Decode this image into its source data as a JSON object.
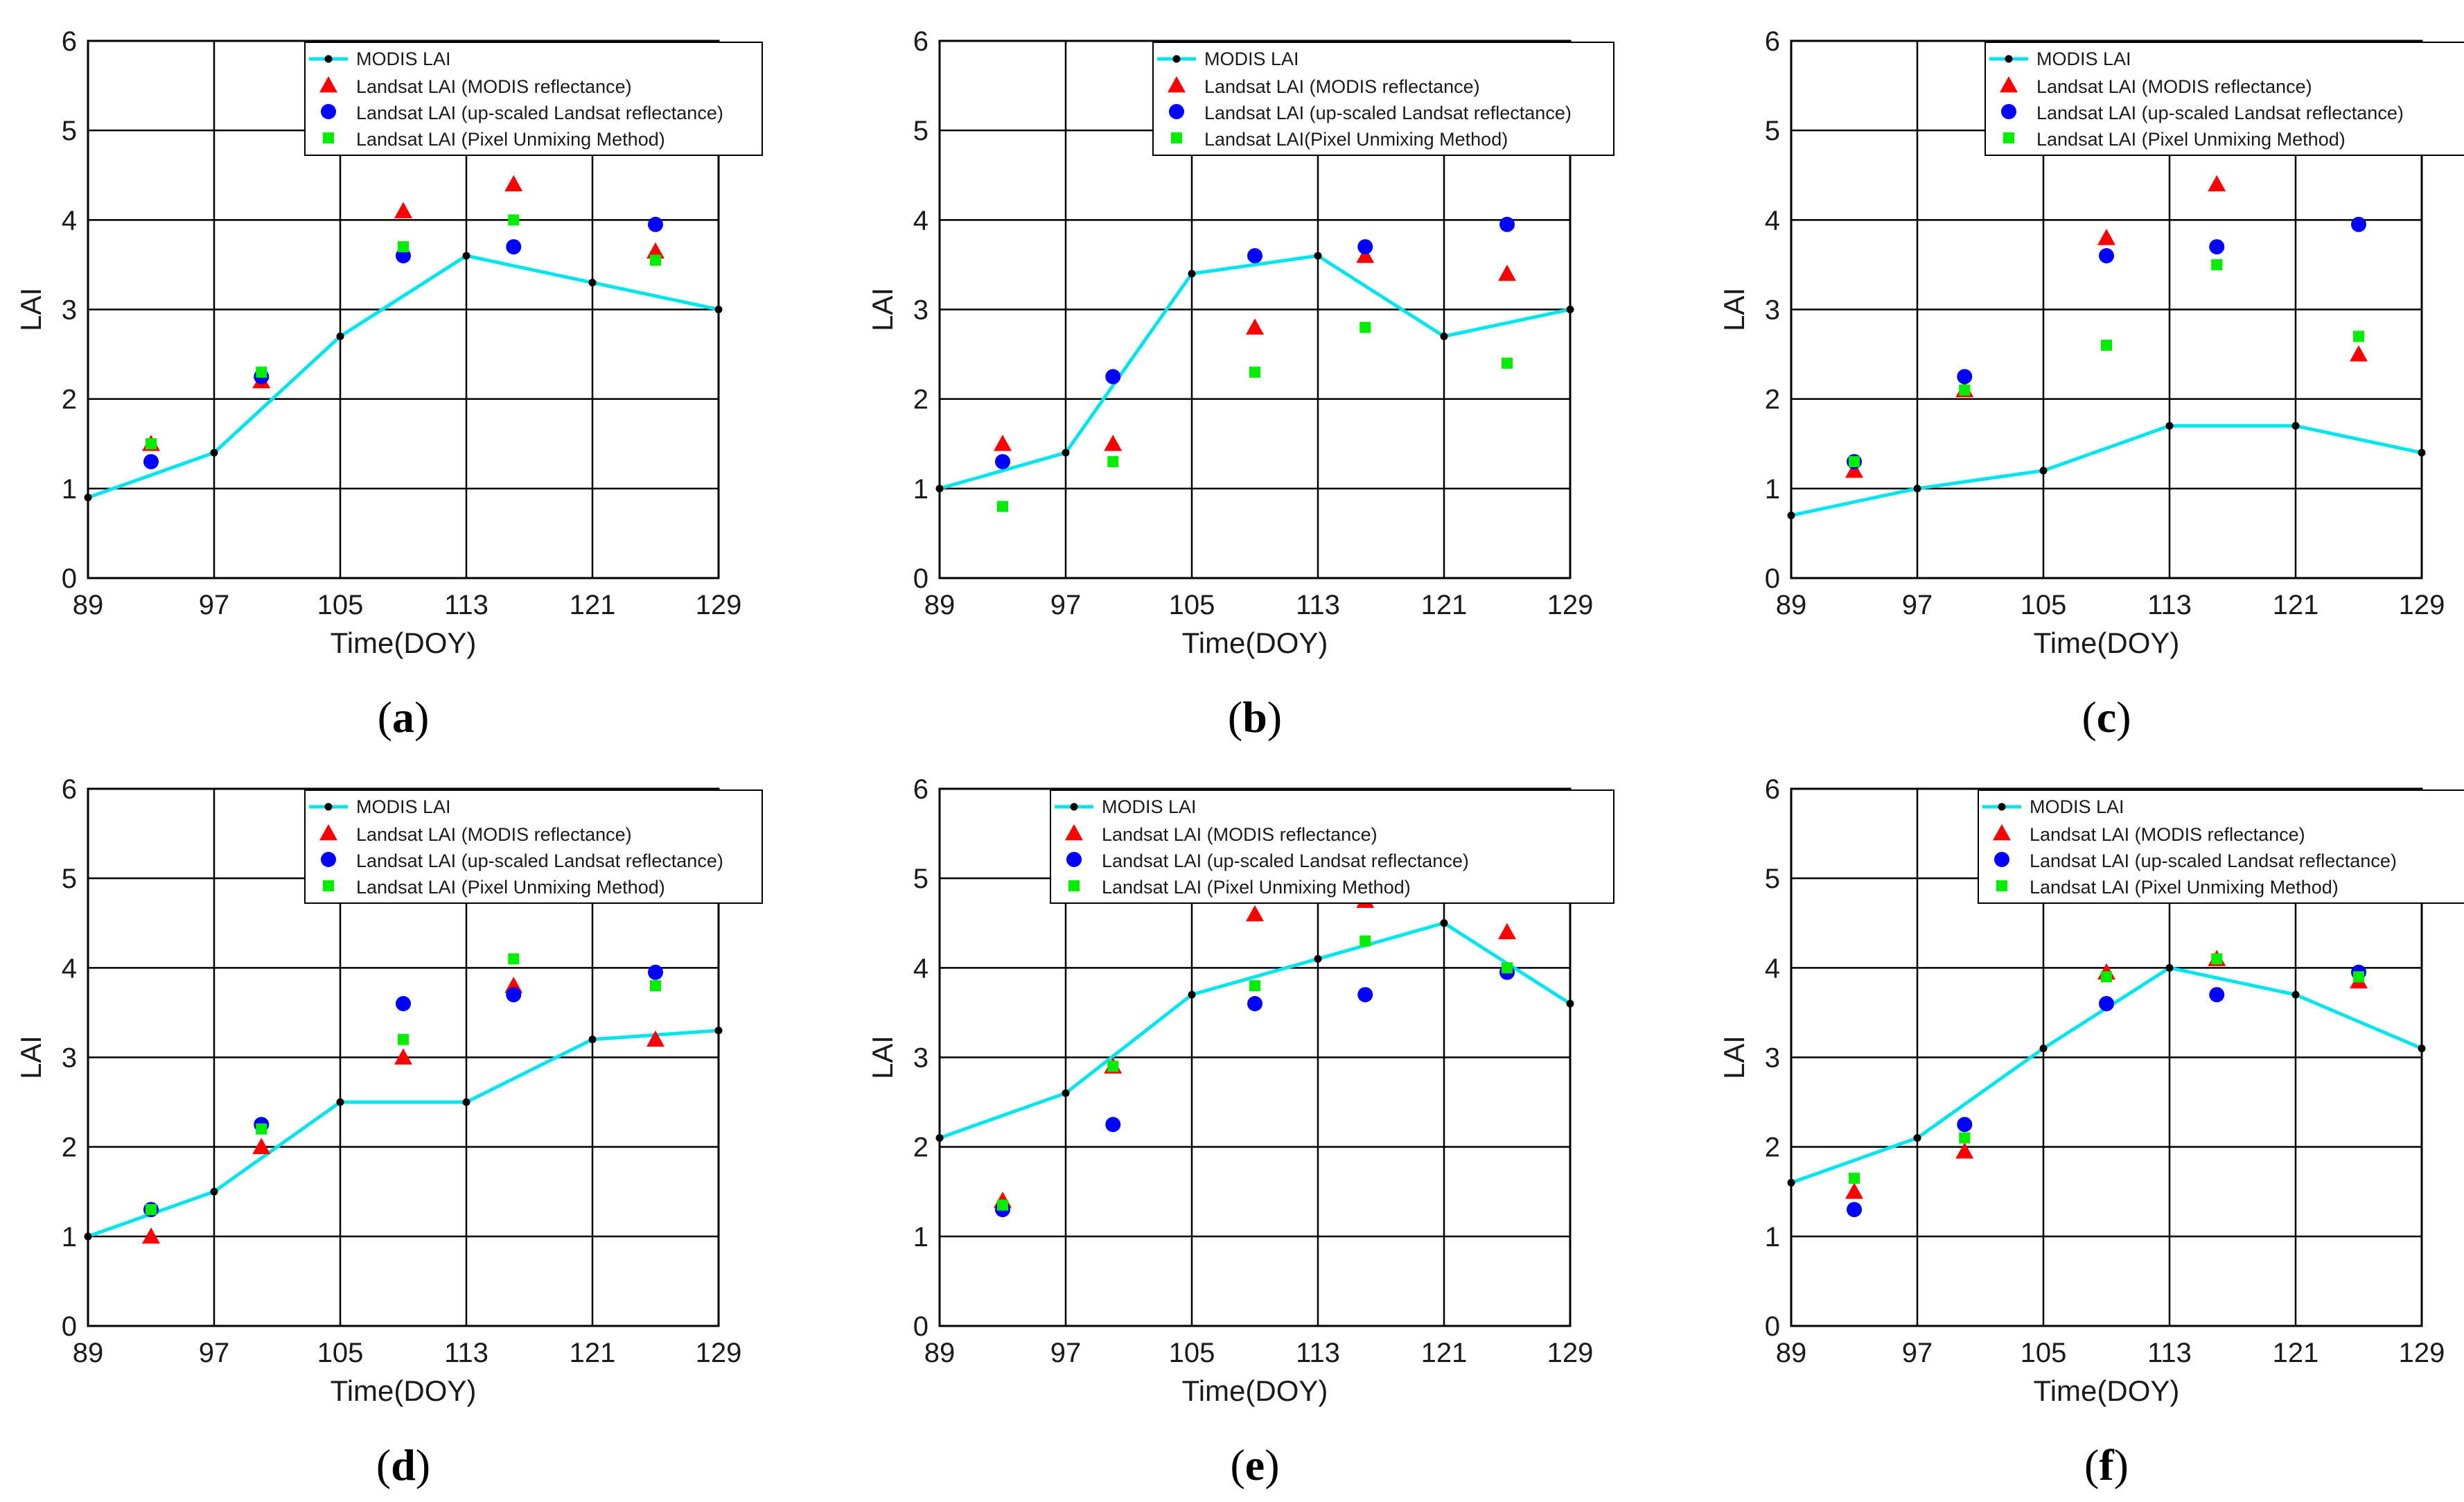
{
  "colors": {
    "modis_line": "#00e5ee",
    "modis_marker": "#000000",
    "landsat_modis_refl": "#ff0000",
    "landsat_upscaled": "#0000ff",
    "landsat_pum": "#00ee00",
    "grid": "#000000"
  },
  "chart_data": [
    {
      "type": "line",
      "panel_label_text": "a",
      "xlabel": "Time(DOY)",
      "ylabel": "LAI",
      "xlim": [
        89,
        129
      ],
      "ylim": [
        0,
        6
      ],
      "xticks": [
        89,
        97,
        105,
        113,
        121,
        129
      ],
      "yticks": [
        0,
        1,
        2,
        3,
        4,
        5,
        6
      ],
      "legend_position": "top-right",
      "modis": {
        "name": "MODIS LAI",
        "x": [
          89,
          97,
          105,
          113,
          121,
          129
        ],
        "y": [
          0.9,
          1.4,
          2.7,
          3.6,
          3.3,
          3.0
        ]
      },
      "scatter_x": [
        93,
        100,
        109,
        116,
        125
      ],
      "series": [
        {
          "name": "Landsat LAI (MODIS reflectance)",
          "marker": "triangle",
          "y": [
            1.5,
            2.2,
            4.1,
            4.4,
            3.65
          ]
        },
        {
          "name": "Landsat LAI (up-scaled Landsat reflectance)",
          "marker": "circle",
          "y": [
            1.3,
            2.25,
            3.6,
            3.7,
            3.95
          ]
        },
        {
          "name": "Landsat LAI (Pixel Unmixing Method)",
          "marker": "square",
          "y": [
            1.5,
            2.3,
            3.7,
            4.0,
            3.55
          ]
        }
      ]
    },
    {
      "type": "line",
      "panel_label_text": "b",
      "xlabel": "Time(DOY)",
      "ylabel": "LAI",
      "xlim": [
        89,
        129
      ],
      "ylim": [
        0,
        6
      ],
      "xticks": [
        89,
        97,
        105,
        113,
        121,
        129
      ],
      "yticks": [
        0,
        1,
        2,
        3,
        4,
        5,
        6
      ],
      "legend_position": "top-right",
      "modis": {
        "name": "MODIS LAI",
        "x": [
          89,
          97,
          105,
          113,
          121,
          129
        ],
        "y": [
          1.0,
          1.4,
          3.4,
          3.6,
          2.7,
          3.0
        ]
      },
      "scatter_x": [
        93,
        100,
        109,
        116,
        125
      ],
      "series": [
        {
          "name": "Landsat LAI (MODIS reflectance)",
          "marker": "triangle",
          "y": [
            1.5,
            1.5,
            2.8,
            3.6,
            3.4
          ]
        },
        {
          "name": "Landsat LAI (up-scaled Landsat reflectance)",
          "marker": "circle",
          "y": [
            1.3,
            2.25,
            3.6,
            3.7,
            3.95
          ]
        },
        {
          "name": "Landsat LAI(Pixel Unmixing Method)",
          "marker": "square",
          "y": [
            0.8,
            1.3,
            2.3,
            2.8,
            2.4
          ]
        }
      ]
    },
    {
      "type": "line",
      "panel_label_text": "c",
      "xlabel": "Time(DOY)",
      "ylabel": "LAI",
      "xlim": [
        89,
        129
      ],
      "ylim": [
        0,
        6
      ],
      "xticks": [
        89,
        97,
        105,
        113,
        121,
        129
      ],
      "yticks": [
        0,
        1,
        2,
        3,
        4,
        5,
        6
      ],
      "legend_position": "top-right",
      "modis": {
        "name": "MODIS LAI",
        "x": [
          89,
          97,
          105,
          113,
          121,
          129
        ],
        "y": [
          0.7,
          1.0,
          1.2,
          1.7,
          1.7,
          1.4
        ]
      },
      "scatter_x": [
        93,
        100,
        109,
        116,
        125
      ],
      "series": [
        {
          "name": "Landsat LAI (MODIS reflectance)",
          "marker": "triangle",
          "y": [
            1.2,
            2.1,
            3.8,
            4.4,
            2.5
          ]
        },
        {
          "name": "Landsat LAI (up-scaled Landsat reflectance)",
          "marker": "circle",
          "y": [
            1.3,
            2.25,
            3.6,
            3.7,
            3.95
          ]
        },
        {
          "name": "Landsat LAI (Pixel Unmixing Method)",
          "marker": "square",
          "y": [
            1.3,
            2.1,
            2.6,
            3.5,
            2.7
          ]
        }
      ]
    },
    {
      "type": "line",
      "panel_label_text": "d",
      "xlabel": "Time(DOY)",
      "ylabel": "LAI",
      "xlim": [
        89,
        129
      ],
      "ylim": [
        0,
        6
      ],
      "xticks": [
        89,
        97,
        105,
        113,
        121,
        129
      ],
      "yticks": [
        0,
        1,
        2,
        3,
        4,
        5,
        6
      ],
      "legend_position": "top-right",
      "modis": {
        "name": "MODIS LAI",
        "x": [
          89,
          97,
          105,
          113,
          121,
          129
        ],
        "y": [
          1.0,
          1.5,
          2.5,
          2.5,
          3.2,
          3.3
        ]
      },
      "scatter_x": [
        93,
        100,
        109,
        116,
        125
      ],
      "series": [
        {
          "name": "Landsat LAI (MODIS reflectance)",
          "marker": "triangle",
          "y": [
            1.0,
            2.0,
            3.0,
            3.8,
            3.2
          ]
        },
        {
          "name": "Landsat LAI (up-scaled Landsat reflectance)",
          "marker": "circle",
          "y": [
            1.3,
            2.25,
            3.6,
            3.7,
            3.95
          ]
        },
        {
          "name": "Landsat LAI (Pixel Unmixing Method)",
          "marker": "square",
          "y": [
            1.3,
            2.2,
            3.2,
            4.1,
            3.8
          ]
        }
      ]
    },
    {
      "type": "line",
      "panel_label_text": "e",
      "xlabel": "Time(DOY)",
      "ylabel": "LAI",
      "xlim": [
        89,
        129
      ],
      "ylim": [
        0,
        6
      ],
      "xticks": [
        89,
        97,
        105,
        113,
        121,
        129
      ],
      "yticks": [
        0,
        1,
        2,
        3,
        4,
        5,
        6
      ],
      "legend_position": "top-right",
      "modis": {
        "name": "MODIS LAI",
        "x": [
          89,
          97,
          105,
          113,
          121,
          129
        ],
        "y": [
          2.1,
          2.6,
          3.7,
          4.1,
          4.5,
          3.6
        ]
      },
      "scatter_x": [
        93,
        100,
        109,
        116,
        125
      ],
      "series": [
        {
          "name": "Landsat LAI (MODIS reflectance)",
          "marker": "triangle",
          "y": [
            1.4,
            2.9,
            4.6,
            4.75,
            4.4
          ]
        },
        {
          "name": "Landsat LAI (up-scaled Landsat reflectance)",
          "marker": "circle",
          "y": [
            1.3,
            2.25,
            3.6,
            3.7,
            3.95
          ]
        },
        {
          "name": "Landsat LAI (Pixel Unmixing Method)",
          "marker": "square",
          "y": [
            1.35,
            2.9,
            3.8,
            4.3,
            4.0
          ]
        }
      ]
    },
    {
      "type": "line",
      "panel_label_text": "f",
      "xlabel": "Time(DOY)",
      "ylabel": "LAI",
      "xlim": [
        89,
        129
      ],
      "ylim": [
        0,
        6
      ],
      "xticks": [
        89,
        97,
        105,
        113,
        121,
        129
      ],
      "yticks": [
        0,
        1,
        2,
        3,
        4,
        5,
        6
      ],
      "legend_position": "top-right",
      "modis": {
        "name": "MODIS LAI",
        "x": [
          89,
          97,
          105,
          113,
          121,
          129
        ],
        "y": [
          1.6,
          2.1,
          3.1,
          4.0,
          3.7,
          3.1
        ]
      },
      "scatter_x": [
        93,
        100,
        109,
        116,
        125
      ],
      "series": [
        {
          "name": "Landsat LAI (MODIS reflectance)",
          "marker": "triangle",
          "y": [
            1.5,
            1.95,
            3.95,
            4.1,
            3.85
          ]
        },
        {
          "name": "Landsat LAI (up-scaled Landsat reflectance)",
          "marker": "circle",
          "y": [
            1.3,
            2.25,
            3.6,
            3.7,
            3.95
          ]
        },
        {
          "name": "Landsat LAI (Pixel Unmixing Method)",
          "marker": "square",
          "y": [
            1.65,
            2.1,
            3.9,
            4.1,
            3.9
          ]
        }
      ]
    }
  ]
}
